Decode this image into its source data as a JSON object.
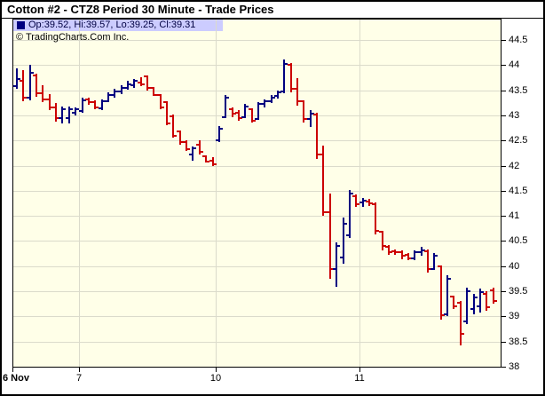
{
  "window": {
    "title": "Cotton #2 - CTZ8 Period 30 Minute - Trade Prices"
  },
  "legend": {
    "ohlc_label": "Op:39.52, Hi:39.57, Lo:39.25, Cl:39.31",
    "copyright": "© TradingCharts.Com Inc.",
    "swatch_color": "#000080",
    "highlight_color": "#CCCCFF"
  },
  "chart_data": {
    "type": "ohlc-bar",
    "title": "Cotton #2 - CTZ8 Period 30 Minute - Trade Prices",
    "symbol": "CTZ8",
    "period": "30 Minute",
    "ylim": [
      38,
      44.5
    ],
    "grid": true,
    "background_color": "#FFFFE8",
    "grid_color": "#DBDBCB",
    "up_color": "#000080",
    "down_color": "#CC0000",
    "last_bar": {
      "open": 39.52,
      "high": 39.57,
      "low": 39.25,
      "close": 39.31
    },
    "y_ticks": [
      {
        "value": 44.5,
        "label": "44.5"
      },
      {
        "value": 44,
        "label": "44"
      },
      {
        "value": 43.5,
        "label": "43.5"
      },
      {
        "value": 43,
        "label": "43"
      },
      {
        "value": 42.5,
        "label": "42.5"
      },
      {
        "value": 42,
        "label": "42"
      },
      {
        "value": 41.5,
        "label": "41.5"
      },
      {
        "value": 41,
        "label": "41"
      },
      {
        "value": 40.5,
        "label": "40.5"
      },
      {
        "value": 40,
        "label": "40"
      },
      {
        "value": 39.5,
        "label": "39.5"
      },
      {
        "value": 39,
        "label": "39"
      },
      {
        "value": 38.5,
        "label": "38.5"
      },
      {
        "value": 38,
        "label": "38"
      }
    ],
    "x_ticks": [
      {
        "label": "6 Nov",
        "bar_index": 0,
        "align": "left",
        "bold": true
      },
      {
        "label": "7",
        "bar_index": 10
      },
      {
        "label": "10",
        "bar_index": 31
      },
      {
        "label": "11",
        "bar_index": 53
      }
    ],
    "bars": [
      [
        43.58,
        43.93,
        43.52,
        43.72
      ],
      [
        43.68,
        43.9,
        43.28,
        43.35
      ],
      [
        43.36,
        44.0,
        43.3,
        43.85
      ],
      [
        43.8,
        43.82,
        43.36,
        43.44
      ],
      [
        43.44,
        43.6,
        43.26,
        43.32
      ],
      [
        43.32,
        43.42,
        43.1,
        43.16
      ],
      [
        43.16,
        43.25,
        42.88,
        42.95
      ],
      [
        42.95,
        43.18,
        42.85,
        43.12
      ],
      [
        42.95,
        43.18,
        42.85,
        43.12
      ],
      [
        43.05,
        43.16,
        43.0,
        43.12
      ],
      [
        43.08,
        43.35,
        43.05,
        43.3
      ],
      [
        43.32,
        43.36,
        43.22,
        43.26
      ],
      [
        43.26,
        43.3,
        43.12,
        43.16
      ],
      [
        43.14,
        43.32,
        43.1,
        43.28
      ],
      [
        43.28,
        43.45,
        43.25,
        43.4
      ],
      [
        43.4,
        43.52,
        43.34,
        43.48
      ],
      [
        43.48,
        43.6,
        43.42,
        43.55
      ],
      [
        43.55,
        43.68,
        43.5,
        43.62
      ],
      [
        43.6,
        43.72,
        43.55,
        43.68
      ],
      [
        43.66,
        43.75,
        43.58,
        43.62
      ],
      [
        43.78,
        43.8,
        43.5,
        43.54
      ],
      [
        43.54,
        43.56,
        43.38,
        43.4
      ],
      [
        43.4,
        43.42,
        43.12,
        43.15
      ],
      [
        43.26,
        43.28,
        42.8,
        42.84
      ],
      [
        42.98,
        43.02,
        42.56,
        42.6
      ],
      [
        42.68,
        42.7,
        42.42,
        42.46
      ],
      [
        42.46,
        42.5,
        42.28,
        42.32
      ],
      [
        42.22,
        42.38,
        42.1,
        42.35
      ],
      [
        42.42,
        42.5,
        42.22,
        42.28
      ],
      [
        42.18,
        42.2,
        42.05,
        42.08
      ],
      [
        42.1,
        42.16,
        41.98,
        42.02
      ],
      [
        42.5,
        42.78,
        42.46,
        42.74
      ],
      [
        42.96,
        43.4,
        42.94,
        43.36
      ],
      [
        43.12,
        43.16,
        42.96,
        43.04
      ],
      [
        43.06,
        43.1,
        42.88,
        42.94
      ],
      [
        42.96,
        43.22,
        42.94,
        43.18
      ],
      [
        43.12,
        43.14,
        42.86,
        42.9
      ],
      [
        42.92,
        43.26,
        42.9,
        43.22
      ],
      [
        43.22,
        43.32,
        43.16,
        43.28
      ],
      [
        43.28,
        43.4,
        43.24,
        43.36
      ],
      [
        43.38,
        43.5,
        43.34,
        43.46
      ],
      [
        43.48,
        44.12,
        43.44,
        44.02
      ],
      [
        44.0,
        44.04,
        43.46,
        43.52
      ],
      [
        43.52,
        43.74,
        43.2,
        43.28
      ],
      [
        43.28,
        43.3,
        42.85,
        42.92
      ],
      [
        42.92,
        43.1,
        42.76,
        43.04
      ],
      [
        43.02,
        43.06,
        42.15,
        42.22
      ],
      [
        42.22,
        42.4,
        41.0,
        41.08
      ],
      [
        41.08,
        41.45,
        39.76,
        39.95
      ],
      [
        39.95,
        40.48,
        39.6,
        40.4
      ],
      [
        40.18,
        40.96,
        40.05,
        40.85
      ],
      [
        40.62,
        41.52,
        40.56,
        41.45
      ],
      [
        41.4,
        41.42,
        41.18,
        41.24
      ],
      [
        41.26,
        41.36,
        41.18,
        41.3
      ],
      [
        41.28,
        41.34,
        41.2,
        41.25
      ],
      [
        41.24,
        41.26,
        40.62,
        40.7
      ],
      [
        40.68,
        40.7,
        40.32,
        40.4
      ],
      [
        40.38,
        40.42,
        40.22,
        40.28
      ],
      [
        40.3,
        40.34,
        40.24,
        40.28
      ],
      [
        40.28,
        40.32,
        40.14,
        40.2
      ],
      [
        40.22,
        40.26,
        40.12,
        40.16
      ],
      [
        40.15,
        40.32,
        40.12,
        40.28
      ],
      [
        40.28,
        40.38,
        40.2,
        40.32
      ],
      [
        40.3,
        40.34,
        39.88,
        39.94
      ],
      [
        39.95,
        40.26,
        39.92,
        40.2
      ],
      [
        40.0,
        40.02,
        38.95,
        39.02
      ],
      [
        39.05,
        39.82,
        39.0,
        39.75
      ],
      [
        39.4,
        39.42,
        39.15,
        39.2
      ],
      [
        39.28,
        39.3,
        38.42,
        38.65
      ],
      [
        38.9,
        39.58,
        38.85,
        39.5
      ],
      [
        39.15,
        39.45,
        39.05,
        39.38
      ],
      [
        39.2,
        39.55,
        39.08,
        39.48
      ],
      [
        39.45,
        39.5,
        39.12,
        39.18
      ],
      [
        39.52,
        39.57,
        39.25,
        39.31
      ]
    ]
  }
}
